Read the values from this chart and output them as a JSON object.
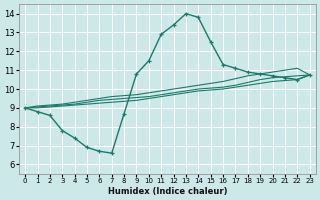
{
  "xlabel": "Humidex (Indice chaleur)",
  "xlim": [
    -0.5,
    23.5
  ],
  "ylim": [
    5.5,
    14.5
  ],
  "xticks": [
    0,
    1,
    2,
    3,
    4,
    5,
    6,
    7,
    8,
    9,
    10,
    11,
    12,
    13,
    14,
    15,
    16,
    17,
    18,
    19,
    20,
    21,
    22,
    23
  ],
  "yticks": [
    6,
    7,
    8,
    9,
    10,
    11,
    12,
    13,
    14
  ],
  "bg_color": "#cce8e8",
  "line_color": "#1a7a6a",
  "grid_color": "#ffffff",
  "line1_x": [
    0,
    1,
    2,
    3,
    4,
    5,
    6,
    7,
    8,
    9,
    10,
    11,
    12,
    13,
    14,
    15,
    16,
    17,
    18,
    19,
    20,
    21,
    22,
    23
  ],
  "line1_y": [
    9.0,
    8.8,
    8.6,
    7.8,
    7.4,
    6.9,
    6.7,
    6.6,
    8.7,
    10.8,
    11.5,
    12.9,
    13.4,
    14.0,
    13.8,
    12.5,
    11.3,
    11.1,
    10.9,
    10.8,
    10.7,
    10.6,
    10.5,
    10.75
  ],
  "line2_x": [
    0,
    1,
    2,
    3,
    4,
    5,
    6,
    7,
    8,
    9,
    10,
    11,
    12,
    13,
    14,
    15,
    16,
    17,
    18,
    19,
    20,
    21,
    22,
    23
  ],
  "line2_y": [
    9.0,
    9.1,
    9.15,
    9.2,
    9.3,
    9.4,
    9.5,
    9.6,
    9.65,
    9.7,
    9.8,
    9.9,
    10.0,
    10.1,
    10.2,
    10.3,
    10.4,
    10.55,
    10.7,
    10.8,
    10.9,
    11.0,
    11.1,
    10.75
  ],
  "line3_x": [
    0,
    1,
    2,
    3,
    4,
    5,
    6,
    7,
    8,
    9,
    10,
    11,
    12,
    13,
    14,
    15,
    16,
    17,
    18,
    19,
    20,
    21,
    22,
    23
  ],
  "line3_y": [
    9.0,
    9.05,
    9.1,
    9.15,
    9.2,
    9.3,
    9.4,
    9.45,
    9.5,
    9.55,
    9.6,
    9.7,
    9.8,
    9.9,
    10.0,
    10.05,
    10.1,
    10.2,
    10.35,
    10.5,
    10.6,
    10.65,
    10.7,
    10.75
  ],
  "line4_x": [
    0,
    1,
    2,
    3,
    4,
    5,
    6,
    7,
    8,
    9,
    10,
    11,
    12,
    13,
    14,
    15,
    16,
    17,
    18,
    19,
    20,
    21,
    22,
    23
  ],
  "line4_y": [
    9.0,
    9.0,
    9.05,
    9.1,
    9.15,
    9.2,
    9.25,
    9.3,
    9.35,
    9.4,
    9.5,
    9.6,
    9.7,
    9.8,
    9.9,
    9.95,
    10.0,
    10.1,
    10.2,
    10.3,
    10.4,
    10.45,
    10.5,
    10.75
  ]
}
